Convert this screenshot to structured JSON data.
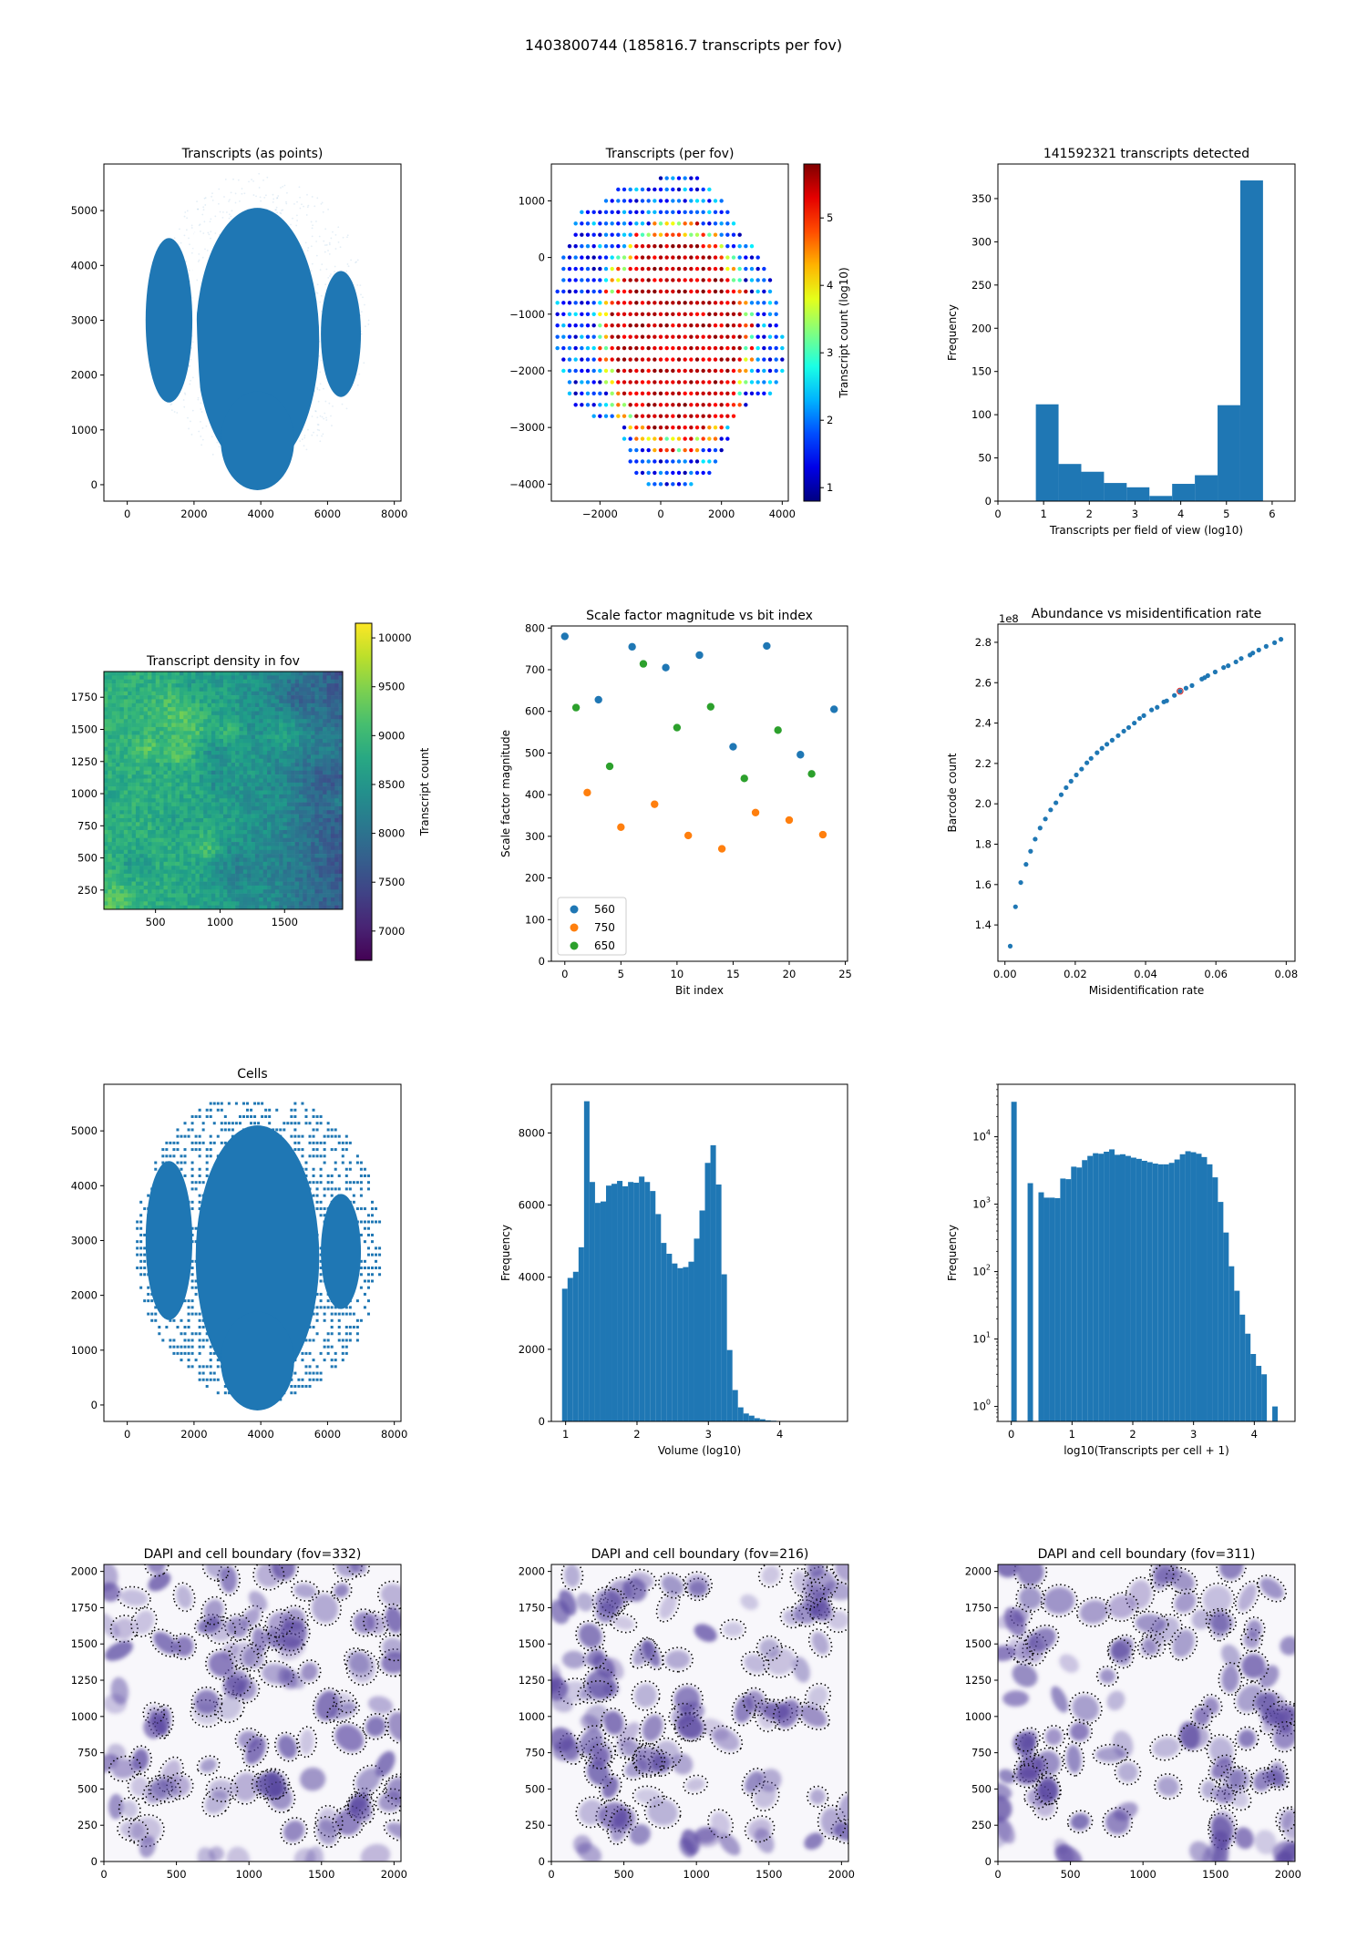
{
  "suptitle": "1403800744 (185816.7 transcripts per fov)",
  "colors": {
    "blue": "#1f77b4",
    "orange": "#ff7f0e",
    "green": "#2ca02c",
    "red": "#d62728"
  },
  "chart_data": [
    {
      "id": "transcripts-points",
      "type": "scatter",
      "title": "Transcripts (as points)",
      "xlabel": "",
      "ylabel": "",
      "xlim": [
        -700,
        8200
      ],
      "ylim": [
        -300,
        5850
      ],
      "xticks": [
        0,
        2000,
        4000,
        6000,
        8000
      ],
      "yticks": [
        0,
        1000,
        2000,
        3000,
        4000,
        5000
      ],
      "regions": [
        {
          "name": "left lobe",
          "cx": 1250,
          "cy": 3000,
          "rx": 700,
          "ry": 1500
        },
        {
          "name": "center body",
          "cx": 3900,
          "cy": 2650,
          "rx": 1850,
          "ry": 2400
        },
        {
          "name": "right lobe",
          "cx": 6400,
          "cy": 2750,
          "rx": 600,
          "ry": 1150
        }
      ]
    },
    {
      "id": "transcripts-per-fov",
      "type": "scatter",
      "title": "Transcripts (per fov)",
      "xlim": [
        -3600,
        4200
      ],
      "ylim": [
        -4300,
        1650
      ],
      "xticks": [
        -2000,
        0,
        2000,
        4000
      ],
      "yticks": [
        -4000,
        -3000,
        -2000,
        -1000,
        0,
        1000
      ],
      "colorbar": {
        "label": "Transcript count (log10)",
        "range": [
          0.8,
          5.8
        ],
        "ticks": [
          1,
          2,
          3,
          4,
          5
        ],
        "cmap": "jet"
      },
      "grid_step": 200,
      "rows": [
        {
          "y": 1400,
          "x0": 0,
          "x1": 1200
        },
        {
          "y": 1200,
          "x0": -1400,
          "x1": 1600
        },
        {
          "y": 1000,
          "x0": -1800,
          "x1": 2000
        },
        {
          "y": 800,
          "x0": -2600,
          "x1": 2200
        },
        {
          "y": 600,
          "x0": -2800,
          "x1": 2400
        },
        {
          "y": 400,
          "x0": -2800,
          "x1": 2600
        },
        {
          "y": 200,
          "x0": -3000,
          "x1": 3000
        },
        {
          "y": 0,
          "x0": -3200,
          "x1": 3200
        },
        {
          "y": -200,
          "x0": -3200,
          "x1": 3400
        },
        {
          "y": -400,
          "x0": -3200,
          "x1": 3600
        },
        {
          "y": -600,
          "x0": -3400,
          "x1": 3600
        },
        {
          "y": -800,
          "x0": -3400,
          "x1": 3800
        },
        {
          "y": -1000,
          "x0": -3400,
          "x1": 3800
        },
        {
          "y": -1200,
          "x0": -3400,
          "x1": 3800
        },
        {
          "y": -1400,
          "x0": -3400,
          "x1": 4000
        },
        {
          "y": -1600,
          "x0": -3400,
          "x1": 4000
        },
        {
          "y": -1800,
          "x0": -3200,
          "x1": 4000
        },
        {
          "y": -2000,
          "x0": -3200,
          "x1": 4000
        },
        {
          "y": -2200,
          "x0": -3000,
          "x1": 3800
        },
        {
          "y": -2400,
          "x0": -3000,
          "x1": 3600
        },
        {
          "y": -2600,
          "x0": -2800,
          "x1": 2800
        },
        {
          "y": -2800,
          "x0": -2200,
          "x1": 2400
        },
        {
          "y": -3000,
          "x0": -1200,
          "x1": 2200
        },
        {
          "y": -3200,
          "x0": -1200,
          "x1": 2200
        },
        {
          "y": -3400,
          "x0": -1000,
          "x1": 2000
        },
        {
          "y": -3600,
          "x0": -1000,
          "x1": 1800
        },
        {
          "y": -3800,
          "x0": -800,
          "x1": 1600
        },
        {
          "y": -4000,
          "x0": -400,
          "x1": 1000
        }
      ]
    },
    {
      "id": "transcripts-detected-hist",
      "type": "bar",
      "title": "141592321 transcripts detected",
      "xlabel": "Transcripts per field of view (log10)",
      "ylabel": "Frequency",
      "xlim": [
        0,
        6.5
      ],
      "ylim": [
        0,
        390
      ],
      "xticks": [
        0,
        1,
        2,
        3,
        4,
        5,
        6
      ],
      "yticks": [
        0,
        50,
        100,
        150,
        200,
        250,
        300,
        350
      ],
      "bin_edges": [
        0.83,
        1.327,
        1.824,
        2.321,
        2.818,
        3.315,
        3.812,
        4.309,
        4.806,
        5.303,
        5.8
      ],
      "values": [
        112,
        43,
        34,
        21,
        16,
        6,
        20,
        30,
        111,
        371
      ]
    },
    {
      "id": "transcript-density-fov",
      "type": "heatmap",
      "title": "Transcript density in fov",
      "xlim": [
        100,
        1950
      ],
      "ylim": [
        100,
        1950
      ],
      "xticks": [
        500,
        1000,
        1500
      ],
      "yticks": [
        250,
        500,
        750,
        1000,
        1250,
        1500,
        1750
      ],
      "colorbar": {
        "label": "Transcript count",
        "range": [
          6700,
          10150
        ],
        "ticks": [
          7000,
          7500,
          8000,
          8500,
          9000,
          9500,
          10000
        ],
        "cmap": "viridis"
      },
      "description": "higher density center-left, lower density right edge"
    },
    {
      "id": "scale-factor-vs-bit",
      "type": "scatter",
      "title": "Scale factor magnitude vs bit index",
      "xlabel": "Bit index",
      "ylabel": "Scale factor magnitude",
      "xlim": [
        -1.2,
        25.2
      ],
      "ylim": [
        0,
        805
      ],
      "xticks": [
        0,
        5,
        10,
        15,
        20,
        25
      ],
      "yticks": [
        0,
        100,
        200,
        300,
        400,
        500,
        600,
        700,
        800
      ],
      "legend": "lower-left",
      "series": [
        {
          "name": "560",
          "x": [
            0,
            3,
            6,
            9,
            12,
            15,
            18,
            21,
            24
          ],
          "y": [
            780,
            628,
            755,
            705,
            735,
            515,
            757,
            496,
            605
          ]
        },
        {
          "name": "750",
          "x": [
            2,
            5,
            8,
            11,
            14,
            17,
            20,
            23
          ],
          "y": [
            405,
            322,
            377,
            302,
            270,
            357,
            339,
            304
          ]
        },
        {
          "name": "650",
          "x": [
            1,
            4,
            7,
            10,
            13,
            16,
            19,
            22
          ],
          "y": [
            609,
            468,
            714,
            561,
            611,
            439,
            555,
            450
          ]
        }
      ]
    },
    {
      "id": "abundance-vs-misid",
      "type": "scatter",
      "title": "Abundance vs misidentification rate",
      "xlabel": "Misidentification rate",
      "ylabel": "Barcode count",
      "offset_label": "1e8",
      "xlim": [
        -0.002,
        0.0825
      ],
      "ylim": [
        1.22,
        2.89
      ],
      "xticks": [
        0.0,
        0.02,
        0.04,
        0.06,
        0.08
      ],
      "xtick_labels": [
        "0.00",
        "0.02",
        "0.04",
        "0.06",
        "0.08"
      ],
      "yticks": [
        1.4,
        1.6,
        1.8,
        2.0,
        2.2,
        2.4,
        2.6,
        2.8
      ],
      "ytick_labels": [
        "1.4",
        "1.6",
        "1.8",
        "2.0",
        "2.2",
        "2.4",
        "2.6",
        "2.8"
      ],
      "x": [
        0.0015,
        0.003,
        0.0045,
        0.006,
        0.0073,
        0.0086,
        0.01,
        0.0115,
        0.013,
        0.0145,
        0.016,
        0.0174,
        0.0188,
        0.0203,
        0.0218,
        0.0233,
        0.0245,
        0.0262,
        0.0276,
        0.029,
        0.0305,
        0.0322,
        0.0338,
        0.0352,
        0.0368,
        0.0383,
        0.0395,
        0.0417,
        0.0433,
        0.0452,
        0.046,
        0.0482,
        0.0498,
        0.0515,
        0.0532,
        0.056,
        0.0568,
        0.0577,
        0.0598,
        0.0622,
        0.0635,
        0.0657,
        0.0672,
        0.0697,
        0.0705,
        0.0722,
        0.0743,
        0.0767,
        0.0785
      ],
      "y": [
        1.295,
        1.49,
        1.61,
        1.7,
        1.765,
        1.825,
        1.88,
        1.925,
        1.97,
        2.005,
        2.045,
        2.08,
        2.112,
        2.143,
        2.172,
        2.203,
        2.225,
        2.253,
        2.275,
        2.295,
        2.315,
        2.338,
        2.36,
        2.378,
        2.4,
        2.423,
        2.437,
        2.465,
        2.478,
        2.505,
        2.51,
        2.537,
        2.558,
        2.573,
        2.586,
        2.618,
        2.625,
        2.635,
        2.653,
        2.675,
        2.684,
        2.703,
        2.72,
        2.737,
        2.747,
        2.762,
        2.78,
        2.798,
        2.815
      ],
      "highlight": {
        "x": 0.0498,
        "y": 2.558,
        "color": "red"
      }
    },
    {
      "id": "cells-scatter",
      "type": "scatter",
      "title": "Cells",
      "xlim": [
        -700,
        8200
      ],
      "ylim": [
        -300,
        5850
      ],
      "xticks": [
        0,
        2000,
        4000,
        6000,
        8000
      ],
      "yticks": [
        0,
        1000,
        2000,
        3000,
        4000,
        5000
      ],
      "regions": [
        {
          "name": "left lobe",
          "cx": 1250,
          "cy": 3000,
          "rx": 700,
          "ry": 1450
        },
        {
          "name": "center body",
          "cx": 3900,
          "cy": 2700,
          "rx": 1850,
          "ry": 2400
        },
        {
          "name": "right lobe",
          "cx": 6400,
          "cy": 2800,
          "rx": 600,
          "ry": 1050
        }
      ]
    },
    {
      "id": "volume-hist",
      "type": "bar",
      "title": "",
      "xlabel": "Volume (log10)",
      "ylabel": "Frequency",
      "xlim": [
        0.8,
        4.95
      ],
      "ylim": [
        0,
        9350
      ],
      "xticks": [
        1,
        2,
        3,
        4
      ],
      "yticks": [
        0,
        2000,
        4000,
        6000,
        8000
      ],
      "bin_start": 0.95,
      "bin_width": 0.077,
      "values": [
        3680,
        3980,
        4150,
        4830,
        8880,
        6640,
        6060,
        6100,
        6540,
        6590,
        6670,
        6520,
        6640,
        6620,
        6790,
        6640,
        6390,
        5750,
        4950,
        4650,
        4380,
        4250,
        4280,
        4430,
        5070,
        5850,
        7170,
        7660,
        6570,
        4080,
        1980,
        870,
        390,
        220,
        160,
        90,
        60,
        30,
        20,
        10,
        6,
        4,
        3,
        2,
        2,
        1,
        1,
        1,
        1,
        1
      ]
    },
    {
      "id": "transcripts-per-cell-hist",
      "type": "bar",
      "title": "",
      "xlabel": "log10(Transcripts per cell + 1)",
      "ylabel": "Frequency",
      "yscale": "log",
      "xlim": [
        -0.22,
        4.67
      ],
      "ylim": [
        0.6,
        60000
      ],
      "xticks": [
        0,
        1,
        2,
        3,
        4
      ],
      "yticks": [
        1,
        10,
        100,
        1000,
        10000
      ],
      "ytick_labels": [
        "10^0",
        "10^1",
        "10^2",
        "10^3",
        "10^4"
      ],
      "bin_start": 0,
      "bin_width": 0.0895,
      "values": [
        33000,
        0,
        0,
        2050,
        0,
        1500,
        1250,
        1250,
        1230,
        2400,
        2350,
        3600,
        3500,
        4500,
        5200,
        5700,
        5600,
        6000,
        6500,
        5400,
        5500,
        5200,
        4900,
        4700,
        4400,
        4200,
        4000,
        3900,
        3900,
        4100,
        4600,
        5500,
        6100,
        5900,
        5600,
        5000,
        3900,
        2500,
        1080,
        380,
        120,
        52,
        23,
        12,
        6,
        4,
        3,
        0,
        1
      ]
    },
    {
      "id": "dapi-fov-332",
      "type": "heatmap",
      "title": "DAPI and cell boundary (fov=332)",
      "xlim": [
        0,
        2048
      ],
      "ylim": [
        0,
        2048
      ],
      "xticks": [
        0,
        500,
        1000,
        1500,
        2000
      ],
      "yticks": [
        0,
        250,
        500,
        750,
        1000,
        1250,
        1500,
        1750,
        2000
      ],
      "cmap": "Purples",
      "seed": 332
    },
    {
      "id": "dapi-fov-216",
      "type": "heatmap",
      "title": "DAPI and cell boundary (fov=216)",
      "xlim": [
        0,
        2048
      ],
      "ylim": [
        0,
        2048
      ],
      "xticks": [
        0,
        500,
        1000,
        1500,
        2000
      ],
      "yticks": [
        0,
        250,
        500,
        750,
        1000,
        1250,
        1500,
        1750,
        2000
      ],
      "cmap": "Purples",
      "seed": 216
    },
    {
      "id": "dapi-fov-311",
      "type": "heatmap",
      "title": "DAPI and cell boundary (fov=311)",
      "xlim": [
        0,
        2048
      ],
      "ylim": [
        0,
        2048
      ],
      "xticks": [
        0,
        500,
        1000,
        1500,
        2000
      ],
      "yticks": [
        0,
        250,
        500,
        750,
        1000,
        1250,
        1500,
        1750,
        2000
      ],
      "cmap": "Purples",
      "seed": 311
    }
  ]
}
